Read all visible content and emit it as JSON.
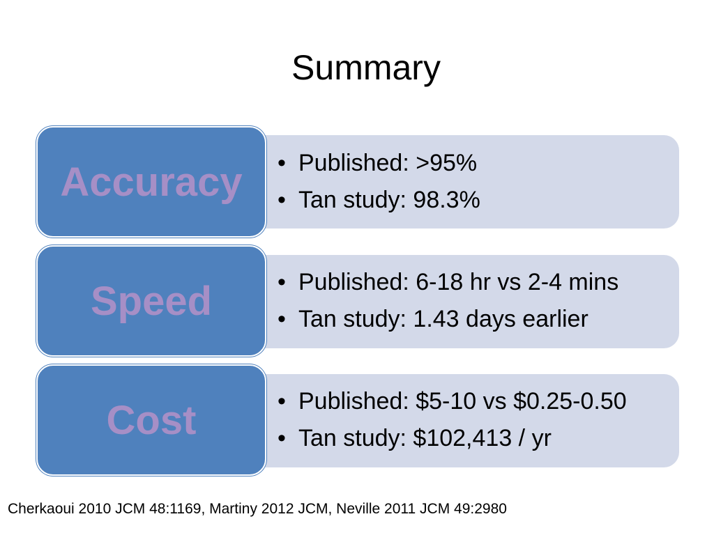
{
  "slide": {
    "title": "Summary",
    "bullet_char": "•",
    "rows": [
      {
        "label": "Accuracy",
        "items": [
          "Published: >95%",
          "Tan study: 98.3%"
        ]
      },
      {
        "label": "Speed",
        "items": [
          "Published: 6-18 hr vs 2-4 mins",
          "Tan study: 1.43 days earlier"
        ]
      },
      {
        "label": "Cost",
        "items": [
          "Published: $5-10 vs $0.25-0.50",
          "Tan study: $102,413 / yr"
        ]
      }
    ],
    "citation": "Cherkaoui 2010 JCM 48:1169, Martiny 2012 JCM, Neville 2011 JCM 49:2980"
  },
  "colors": {
    "label_box": "#4f81bd",
    "label_text": "#a68fc6",
    "detail_box": "#d3d9e9"
  }
}
